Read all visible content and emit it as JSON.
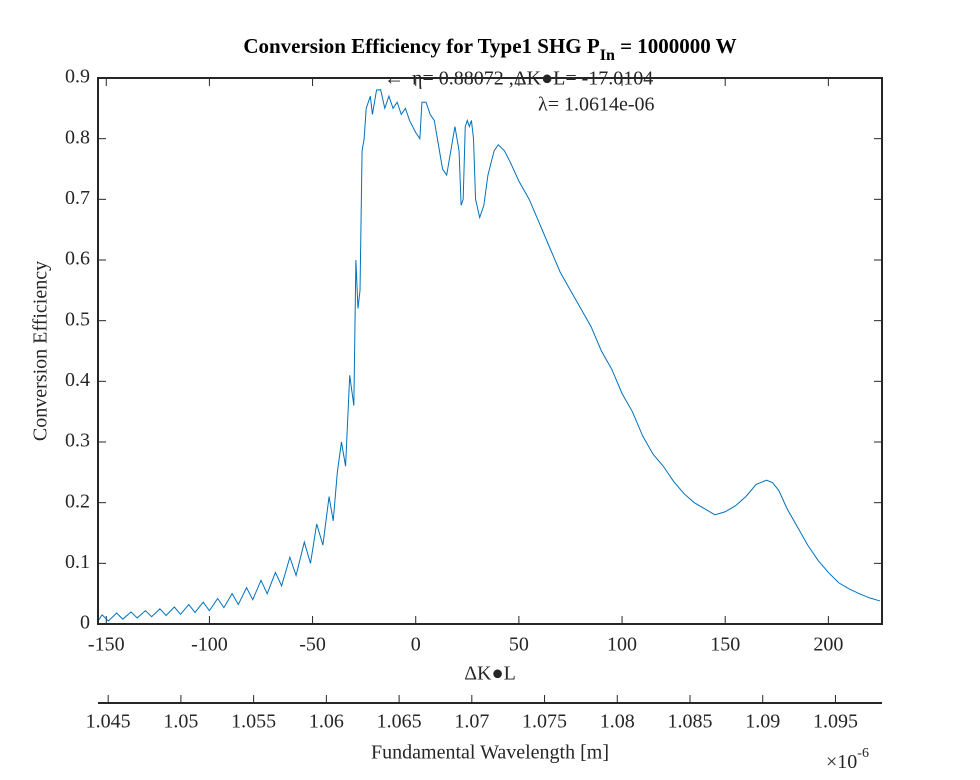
{
  "chart_data": {
    "type": "line",
    "title": "Conversion Efficiency for Type1 SHG P",
    "title_subscript": "In",
    "title_suffix": " = 1000000 W",
    "xlabel": "ΔK●L",
    "ylabel": "Conversion Efficiency",
    "x2label": "Fundamental Wavelength [m]",
    "x2_exponent_base": "×10",
    "x2_exponent": "-6",
    "annotation_arrow": "←",
    "annotation_lines": [
      "η= 0.88072 ,ΔK●L= -17.0104",
      "λ= 1.0614e-06"
    ],
    "color": "#0072bd",
    "xlim": [
      -154,
      226
    ],
    "xticks": [
      -150,
      -100,
      -50,
      0,
      50,
      100,
      150,
      200
    ],
    "ylim": [
      0,
      0.9
    ],
    "yticks": [
      0,
      0.1,
      0.2,
      0.3,
      0.4,
      0.5,
      0.6,
      0.7,
      0.8,
      0.9
    ],
    "x2lim": [
      1.0443,
      1.0982
    ],
    "x2ticks": [
      1.045,
      1.05,
      1.055,
      1.06,
      1.065,
      1.07,
      1.075,
      1.08,
      1.085,
      1.09,
      1.095
    ],
    "x": [
      -154,
      -152,
      -149,
      -145,
      -142,
      -138,
      -135,
      -131,
      -128,
      -124,
      -121,
      -117,
      -114,
      -110,
      -107,
      -103,
      -100,
      -96,
      -93,
      -89,
      -86,
      -82,
      -79,
      -75,
      -72,
      -68,
      -65,
      -61,
      -58,
      -54,
      -51,
      -48,
      -45,
      -42,
      -40,
      -38,
      -36,
      -34,
      -32,
      -30,
      -29,
      -28,
      -27,
      -26,
      -25,
      -24,
      -22,
      -21,
      -19,
      -17,
      -15,
      -13,
      -11,
      -9,
      -7,
      -5,
      -3,
      0,
      2,
      3,
      5,
      7,
      9,
      11,
      13,
      15,
      17,
      19,
      21,
      22,
      23,
      24,
      25,
      26,
      27,
      28,
      29,
      31,
      33,
      35,
      38,
      40,
      43,
      46,
      50,
      55,
      60,
      65,
      70,
      75,
      80,
      85,
      90,
      95,
      100,
      105,
      110,
      115,
      120,
      125,
      130,
      135,
      140,
      145,
      150,
      155,
      160,
      165,
      170,
      173,
      176,
      180,
      185,
      190,
      195,
      200,
      205,
      210,
      215,
      220,
      225
    ],
    "values": [
      0.005,
      0.015,
      0.005,
      0.018,
      0.008,
      0.02,
      0.01,
      0.022,
      0.012,
      0.025,
      0.014,
      0.028,
      0.016,
      0.032,
      0.019,
      0.036,
      0.022,
      0.042,
      0.027,
      0.05,
      0.032,
      0.06,
      0.04,
      0.072,
      0.05,
      0.085,
      0.063,
      0.11,
      0.08,
      0.135,
      0.1,
      0.165,
      0.13,
      0.21,
      0.17,
      0.25,
      0.3,
      0.26,
      0.41,
      0.36,
      0.6,
      0.52,
      0.55,
      0.78,
      0.8,
      0.85,
      0.87,
      0.84,
      0.88,
      0.88072,
      0.85,
      0.87,
      0.85,
      0.86,
      0.84,
      0.85,
      0.83,
      0.81,
      0.8,
      0.86,
      0.86,
      0.84,
      0.83,
      0.79,
      0.75,
      0.74,
      0.78,
      0.82,
      0.78,
      0.69,
      0.7,
      0.82,
      0.83,
      0.82,
      0.83,
      0.8,
      0.7,
      0.67,
      0.69,
      0.74,
      0.78,
      0.79,
      0.78,
      0.76,
      0.73,
      0.7,
      0.66,
      0.62,
      0.58,
      0.55,
      0.52,
      0.49,
      0.45,
      0.42,
      0.38,
      0.35,
      0.31,
      0.28,
      0.26,
      0.235,
      0.215,
      0.2,
      0.19,
      0.18,
      0.185,
      0.195,
      0.21,
      0.23,
      0.237,
      0.233,
      0.22,
      0.19,
      0.16,
      0.13,
      0.105,
      0.085,
      0.068,
      0.058,
      0.05,
      0.043,
      0.038
    ]
  }
}
